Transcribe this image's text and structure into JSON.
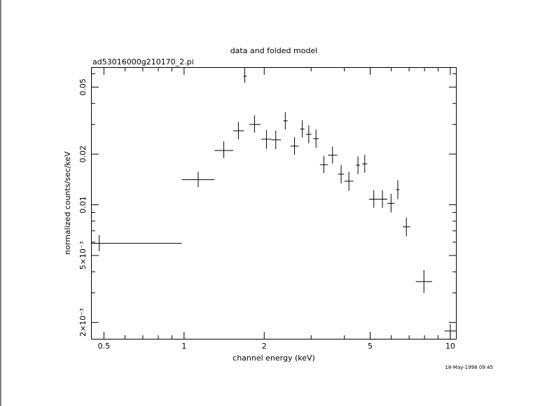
{
  "chart_data": {
    "type": "scatter",
    "title": "data and folded model",
    "subtitle": "ad53016000g210170_2.pi",
    "xlabel": "channel energy (keV)",
    "ylabel": "normalized counts/sec/keV",
    "x_scale": "log",
    "y_scale": "log",
    "xlim": [
      0.45,
      10.5
    ],
    "ylim": [
      0.0016,
      0.065
    ],
    "x_ticks": [
      {
        "value": 0.5,
        "label": "0.5"
      },
      {
        "value": 1,
        "label": "1"
      },
      {
        "value": 2,
        "label": "2"
      },
      {
        "value": 5,
        "label": "5"
      },
      {
        "value": 10,
        "label": "10"
      }
    ],
    "y_ticks": [
      {
        "value": 0.002,
        "label": "2×10⁻³"
      },
      {
        "value": 0.005,
        "label": "5×10⁻³"
      },
      {
        "value": 0.01,
        "label": "0.01"
      },
      {
        "value": 0.02,
        "label": "0.02"
      },
      {
        "value": 0.05,
        "label": "0.05"
      }
    ],
    "grid": false,
    "legend": "none",
    "color": "#000000",
    "series": [
      {
        "points": [
          {
            "x": 0.48,
            "xlo": 0.45,
            "xhi": 0.98,
            "y": 0.0059,
            "ylo": 0.0053,
            "yhi": 0.0066
          },
          {
            "x": 1.13,
            "xlo": 0.98,
            "xhi": 1.3,
            "y": 0.0141,
            "ylo": 0.0127,
            "yhi": 0.0157
          },
          {
            "x": 1.41,
            "xlo": 1.3,
            "xhi": 1.53,
            "y": 0.021,
            "ylo": 0.0189,
            "yhi": 0.0238
          },
          {
            "x": 1.6,
            "xlo": 1.53,
            "xhi": 1.68,
            "y": 0.0275,
            "ylo": 0.0245,
            "yhi": 0.031
          },
          {
            "x": 1.69,
            "xlo": 1.67,
            "xhi": 1.72,
            "y": 0.058,
            "ylo": 0.053,
            "yhi": 0.065
          },
          {
            "x": 1.84,
            "xlo": 1.76,
            "xhi": 1.94,
            "y": 0.03,
            "ylo": 0.0268,
            "yhi": 0.034
          },
          {
            "x": 2.04,
            "xlo": 1.95,
            "xhi": 2.13,
            "y": 0.0245,
            "ylo": 0.0215,
            "yhi": 0.0278
          },
          {
            "x": 2.21,
            "xlo": 2.13,
            "xhi": 2.31,
            "y": 0.0243,
            "ylo": 0.0214,
            "yhi": 0.0276
          },
          {
            "x": 2.4,
            "xlo": 2.36,
            "xhi": 2.45,
            "y": 0.0315,
            "ylo": 0.028,
            "yhi": 0.0355
          },
          {
            "x": 2.6,
            "xlo": 2.51,
            "xhi": 2.69,
            "y": 0.0223,
            "ylo": 0.0198,
            "yhi": 0.0252
          },
          {
            "x": 2.78,
            "xlo": 2.73,
            "xhi": 2.83,
            "y": 0.0282,
            "ylo": 0.0251,
            "yhi": 0.0318
          },
          {
            "x": 2.94,
            "xlo": 2.87,
            "xhi": 3.01,
            "y": 0.0262,
            "ylo": 0.0232,
            "yhi": 0.0296
          },
          {
            "x": 3.13,
            "xlo": 3.05,
            "xhi": 3.21,
            "y": 0.0247,
            "ylo": 0.0218,
            "yhi": 0.028
          },
          {
            "x": 3.35,
            "xlo": 3.24,
            "xhi": 3.47,
            "y": 0.0173,
            "ylo": 0.0154,
            "yhi": 0.0195
          },
          {
            "x": 3.61,
            "xlo": 3.47,
            "xhi": 3.76,
            "y": 0.0197,
            "ylo": 0.0176,
            "yhi": 0.0222
          },
          {
            "x": 3.89,
            "xlo": 3.79,
            "xhi": 3.99,
            "y": 0.0152,
            "ylo": 0.0134,
            "yhi": 0.0172
          },
          {
            "x": 4.16,
            "xlo": 4.01,
            "xhi": 4.32,
            "y": 0.0138,
            "ylo": 0.0121,
            "yhi": 0.0157
          },
          {
            "x": 4.5,
            "xlo": 4.42,
            "xhi": 4.58,
            "y": 0.0172,
            "ylo": 0.0152,
            "yhi": 0.0194
          },
          {
            "x": 4.77,
            "xlo": 4.66,
            "xhi": 4.88,
            "y": 0.0175,
            "ylo": 0.0155,
            "yhi": 0.0198
          },
          {
            "x": 5.16,
            "xlo": 4.95,
            "xhi": 5.38,
            "y": 0.0108,
            "ylo": 0.0096,
            "yhi": 0.0122
          },
          {
            "x": 5.56,
            "xlo": 5.33,
            "xhi": 5.8,
            "y": 0.0108,
            "ylo": 0.0096,
            "yhi": 0.0122
          },
          {
            "x": 5.99,
            "xlo": 5.8,
            "xhi": 6.18,
            "y": 0.0102,
            "ylo": 0.009,
            "yhi": 0.0116
          },
          {
            "x": 6.35,
            "xlo": 6.26,
            "xhi": 6.44,
            "y": 0.0123,
            "ylo": 0.0108,
            "yhi": 0.014
          },
          {
            "x": 6.84,
            "xlo": 6.62,
            "xhi": 7.07,
            "y": 0.0074,
            "ylo": 0.0065,
            "yhi": 0.0084
          },
          {
            "x": 7.96,
            "xlo": 7.42,
            "xhi": 8.54,
            "y": 0.0035,
            "ylo": 0.003,
            "yhi": 0.0041
          },
          {
            "x": 10.0,
            "xlo": 9.5,
            "xhi": 10.5,
            "y": 0.00178,
            "ylo": 0.00162,
            "yhi": 0.00196
          }
        ]
      }
    ]
  },
  "footer": {
    "timestamp": "18-May-1998 09:45"
  }
}
